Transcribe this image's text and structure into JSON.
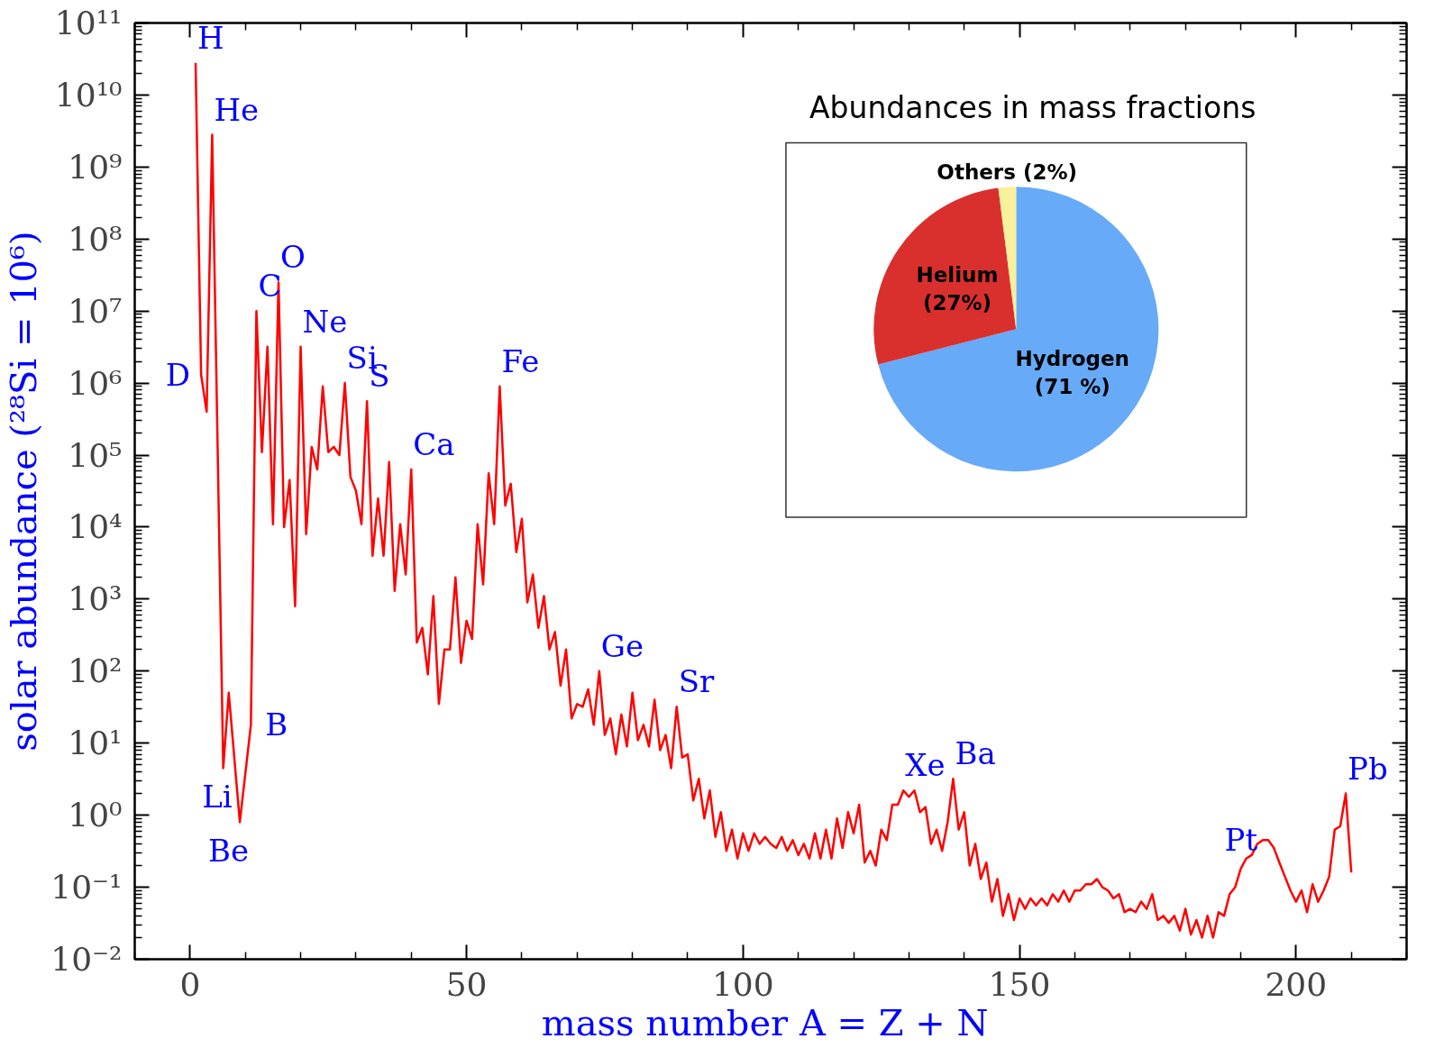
{
  "chart_data": [
    {
      "type": "line",
      "xlabel": "mass number  A = Z + N",
      "ylabel": "solar abundance (²⁸Si = 10⁶)",
      "log": "y",
      "xlim": [
        -10,
        220
      ],
      "ylim": [
        0.01,
        100000000000.0
      ],
      "xticks": [
        0,
        50,
        100,
        150,
        200
      ],
      "yticks": [
        {
          "value": 0.01,
          "label": "10⁻²"
        },
        {
          "value": 0.1,
          "label": "10⁻¹"
        },
        {
          "value": 1,
          "label": "10⁰"
        },
        {
          "value": 10,
          "label": "10¹"
        },
        {
          "value": 100,
          "label": "10²"
        },
        {
          "value": 1000,
          "label": "10³"
        },
        {
          "value": 10000,
          "label": "10⁴"
        },
        {
          "value": 100000,
          "label": "10⁵"
        },
        {
          "value": 1000000,
          "label": "10⁶"
        },
        {
          "value": 10000000,
          "label": "10⁷"
        },
        {
          "value": 100000000,
          "label": "10⁸"
        },
        {
          "value": 1000000000,
          "label": "10⁹"
        },
        {
          "value": 10000000000,
          "label": "10¹⁰"
        },
        {
          "value": 100000000000,
          "label": "10¹¹"
        }
      ],
      "series": [
        {
          "color": "#ff0000",
          "x": [
            1,
            2,
            3,
            4,
            6,
            7,
            9,
            11,
            12,
            13,
            14,
            15,
            16,
            17,
            18,
            19,
            20,
            21,
            22,
            23,
            24,
            25,
            26,
            27,
            28,
            29,
            30,
            31,
            32,
            33,
            34,
            35,
            36,
            37,
            38,
            39,
            40,
            41,
            42,
            43,
            44,
            45,
            46,
            47,
            48,
            49,
            50,
            51,
            52,
            53,
            54,
            55,
            56,
            57,
            58,
            59,
            60,
            61,
            62,
            63,
            64,
            65,
            66,
            67,
            68,
            69,
            70,
            71,
            72,
            73,
            74,
            75,
            76,
            77,
            78,
            79,
            80,
            81,
            82,
            83,
            84,
            85,
            86,
            87,
            88,
            89,
            90,
            91,
            92,
            93,
            94,
            95,
            96,
            97,
            98,
            99,
            100,
            101,
            102,
            103,
            104,
            105,
            106,
            107,
            108,
            109,
            110,
            111,
            112,
            113,
            114,
            115,
            116,
            117,
            118,
            119,
            120,
            121,
            122,
            123,
            124,
            125,
            126,
            127,
            128,
            129,
            130,
            131,
            132,
            133,
            134,
            135,
            136,
            137,
            138,
            139,
            140,
            141,
            142,
            143,
            144,
            145,
            146,
            147,
            148,
            149,
            150,
            151,
            152,
            153,
            154,
            155,
            156,
            157,
            158,
            159,
            160,
            161,
            162,
            163,
            164,
            165,
            166,
            167,
            168,
            169,
            170,
            171,
            172,
            173,
            174,
            175,
            176,
            177,
            178,
            179,
            180,
            181,
            182,
            183,
            184,
            185,
            186,
            187,
            188,
            189,
            190,
            191,
            192,
            193,
            194,
            195,
            196,
            197,
            198,
            199,
            200,
            201,
            202,
            203,
            204,
            205,
            206,
            207,
            208,
            209,
            210
          ],
          "values": [
            28000000000.0,
            1300000.0,
            400000.0,
            2800000000.0,
            4.5,
            50,
            0.8,
            18,
            10000000.0,
            110000.0,
            3200000.0,
            11000.0,
            25000000.0,
            10000.0,
            45000.0,
            800,
            3200000.0,
            8000.0,
            130000.0,
            63000.0,
            900000.0,
            110000.0,
            130000.0,
            100000.0,
            1000000.0,
            50000.0,
            32000.0,
            11000.0,
            560000.0,
            4000.0,
            25000.0,
            4000.0,
            80000.0,
            1300.0,
            11000.0,
            2200.0,
            63000.0,
            250,
            400,
            90,
            1100.0,
            35,
            200,
            200,
            2000.0,
            130,
            500,
            280,
            11000.0,
            1600.0,
            56000.0,
            11000.0,
            900000.0,
            20000.0,
            40000.0,
            4500.0,
            13000.0,
            900,
            2200.0,
            400,
            1100.0,
            200,
            350,
            63,
            200,
            22,
            35,
            32,
            56,
            18,
            100,
            13,
            22,
            7,
            25,
            9,
            50,
            11,
            18,
            9,
            40,
            8,
            13,
            4.5,
            32,
            6.3,
            7,
            1.6,
            3.2,
            0.9,
            2.2,
            0.5,
            1.1,
            0.32,
            0.63,
            0.25,
            0.56,
            0.32,
            0.56,
            0.4,
            0.5,
            0.4,
            0.35,
            0.5,
            0.32,
            0.45,
            0.28,
            0.4,
            0.25,
            0.56,
            0.25,
            0.63,
            0.25,
            0.9,
            0.35,
            1.1,
            0.56,
            1.4,
            0.22,
            0.32,
            0.2,
            0.63,
            0.45,
            1.4,
            1.4,
            2.2,
            1.8,
            2.2,
            1.1,
            1.3,
            0.4,
            0.63,
            0.32,
            0.8,
            3.2,
            0.63,
            1.1,
            0.2,
            0.4,
            0.13,
            0.22,
            0.063,
            0.13,
            0.04,
            0.08,
            0.035,
            0.07,
            0.05,
            0.07,
            0.056,
            0.07,
            0.056,
            0.08,
            0.063,
            0.09,
            0.063,
            0.09,
            0.09,
            0.11,
            0.11,
            0.13,
            0.1,
            0.09,
            0.07,
            0.08,
            0.045,
            0.05,
            0.045,
            0.063,
            0.05,
            0.08,
            0.035,
            0.04,
            0.032,
            0.04,
            0.025,
            0.05,
            0.022,
            0.035,
            0.02,
            0.04,
            0.02,
            0.045,
            0.04,
            0.08,
            0.1,
            0.18,
            0.25,
            0.28,
            0.4,
            0.45,
            0.45,
            0.35,
            0.22,
            0.14,
            0.09,
            0.063,
            0.09,
            0.045,
            0.11,
            0.063,
            0.09,
            0.14,
            0.63,
            0.7,
            2,
            0.16
          ]
        }
      ],
      "annotations": [
        {
          "text": "H",
          "x": 1,
          "y": 28000000000.0
        },
        {
          "text": "He",
          "x": 4,
          "y": 2800000000.0
        },
        {
          "text": "D",
          "x": 2,
          "y": 1300000.0
        },
        {
          "text": "C",
          "x": 12,
          "y": 10000000.0
        },
        {
          "text": "O",
          "x": 16,
          "y": 25000000.0
        },
        {
          "text": "Ne",
          "x": 20,
          "y": 3200000.0
        },
        {
          "text": "Si",
          "x": 28,
          "y": 1000000.0
        },
        {
          "text": "S",
          "x": 32,
          "y": 560000.0
        },
        {
          "text": "Ca",
          "x": 40,
          "y": 63000.0
        },
        {
          "text": "Fe",
          "x": 56,
          "y": 900000.0
        },
        {
          "text": "Ge",
          "x": 74,
          "y": 100
        },
        {
          "text": "Sr",
          "x": 88,
          "y": 32
        },
        {
          "text": "Xe",
          "x": 129,
          "y": 2.2
        },
        {
          "text": "Ba",
          "x": 138,
          "y": 3.2
        },
        {
          "text": "Pt",
          "x": 195,
          "y": 0.45
        },
        {
          "text": "Pb",
          "x": 209,
          "y": 2
        },
        {
          "text": "Li",
          "x": 6,
          "y": 4.5
        },
        {
          "text": "B",
          "x": 11,
          "y": 18
        },
        {
          "text": "Be",
          "x": 9,
          "y": 0.8
        }
      ]
    },
    {
      "type": "pie",
      "title": "Abundances in mass fractions",
      "categories": [
        "Hydrogen",
        "Helium",
        "Others"
      ],
      "values": [
        71,
        27,
        2
      ],
      "colors": [
        "#66aaf8",
        "#d9302e",
        "#f8f09a"
      ],
      "value_labels": [
        "(71 %)",
        "(27%)",
        "(2%)"
      ]
    }
  ]
}
